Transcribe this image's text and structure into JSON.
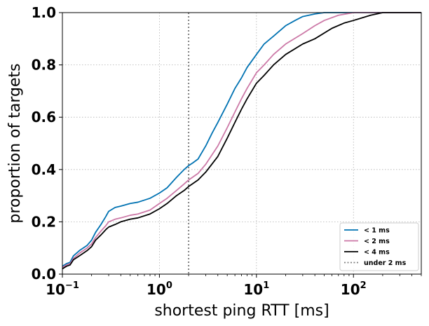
{
  "chart_data": {
    "type": "line",
    "title": "",
    "xlabel": "shortest ping RTT [ms]",
    "ylabel": "proportion of targets",
    "x_scale": "log",
    "xlim": [
      0.1,
      500
    ],
    "ylim": [
      0.0,
      1.0
    ],
    "grid": true,
    "legend_position": "bottom-right",
    "x_ticks": [
      {
        "base": "10",
        "exp": "−1",
        "value": 0.1
      },
      {
        "base": "10",
        "exp": "0",
        "value": 1
      },
      {
        "base": "10",
        "exp": "1",
        "value": 10
      },
      {
        "base": "10",
        "exp": "2",
        "value": 100
      }
    ],
    "y_ticks": [
      {
        "label": "0.0",
        "value": 0.0
      },
      {
        "label": "0.2",
        "value": 0.2
      },
      {
        "label": "0.4",
        "value": 0.4
      },
      {
        "label": "0.6",
        "value": 0.6
      },
      {
        "label": "0.8",
        "value": 0.8
      },
      {
        "label": "1.0",
        "value": 1.0
      }
    ],
    "reference_line": {
      "name": "under 2 ms",
      "x": 2,
      "color": "#808080",
      "style": "dotted"
    },
    "series": [
      {
        "name": "< 1 ms",
        "color": "#0072B2",
        "points": [
          [
            0.1,
            0.03
          ],
          [
            0.11,
            0.04
          ],
          [
            0.12,
            0.045
          ],
          [
            0.13,
            0.07
          ],
          [
            0.15,
            0.09
          ],
          [
            0.18,
            0.11
          ],
          [
            0.2,
            0.13
          ],
          [
            0.22,
            0.16
          ],
          [
            0.25,
            0.19
          ],
          [
            0.28,
            0.22
          ],
          [
            0.3,
            0.24
          ],
          [
            0.35,
            0.255
          ],
          [
            0.4,
            0.26
          ],
          [
            0.5,
            0.27
          ],
          [
            0.6,
            0.275
          ],
          [
            0.8,
            0.29
          ],
          [
            1.0,
            0.31
          ],
          [
            1.2,
            0.33
          ],
          [
            1.5,
            0.37
          ],
          [
            1.8,
            0.4
          ],
          [
            2.0,
            0.415
          ],
          [
            2.2,
            0.425
          ],
          [
            2.5,
            0.44
          ],
          [
            3.0,
            0.49
          ],
          [
            3.5,
            0.54
          ],
          [
            4.0,
            0.58
          ],
          [
            5.0,
            0.65
          ],
          [
            6.0,
            0.71
          ],
          [
            7.0,
            0.75
          ],
          [
            8.0,
            0.79
          ],
          [
            10,
            0.84
          ],
          [
            12,
            0.88
          ],
          [
            15,
            0.91
          ],
          [
            20,
            0.95
          ],
          [
            25,
            0.97
          ],
          [
            30,
            0.985
          ],
          [
            40,
            0.995
          ],
          [
            50,
            1.0
          ],
          [
            500,
            1.0
          ]
        ]
      },
      {
        "name": "< 2 ms",
        "color": "#CC79A7",
        "points": [
          [
            0.1,
            0.025
          ],
          [
            0.11,
            0.035
          ],
          [
            0.12,
            0.04
          ],
          [
            0.13,
            0.06
          ],
          [
            0.15,
            0.08
          ],
          [
            0.18,
            0.1
          ],
          [
            0.2,
            0.115
          ],
          [
            0.22,
            0.14
          ],
          [
            0.25,
            0.165
          ],
          [
            0.28,
            0.185
          ],
          [
            0.3,
            0.2
          ],
          [
            0.35,
            0.21
          ],
          [
            0.4,
            0.215
          ],
          [
            0.5,
            0.225
          ],
          [
            0.6,
            0.23
          ],
          [
            0.8,
            0.245
          ],
          [
            1.0,
            0.27
          ],
          [
            1.2,
            0.29
          ],
          [
            1.5,
            0.32
          ],
          [
            1.8,
            0.345
          ],
          [
            2.0,
            0.36
          ],
          [
            2.5,
            0.385
          ],
          [
            3.0,
            0.42
          ],
          [
            4.0,
            0.49
          ],
          [
            5.0,
            0.56
          ],
          [
            6.0,
            0.62
          ],
          [
            7.0,
            0.67
          ],
          [
            8.0,
            0.71
          ],
          [
            10,
            0.77
          ],
          [
            12,
            0.8
          ],
          [
            15,
            0.84
          ],
          [
            20,
            0.88
          ],
          [
            30,
            0.92
          ],
          [
            40,
            0.95
          ],
          [
            50,
            0.97
          ],
          [
            70,
            0.99
          ],
          [
            100,
            1.0
          ],
          [
            500,
            1.0
          ]
        ]
      },
      {
        "name": "< 4 ms",
        "color": "#000000",
        "points": [
          [
            0.1,
            0.02
          ],
          [
            0.11,
            0.03
          ],
          [
            0.12,
            0.035
          ],
          [
            0.13,
            0.055
          ],
          [
            0.15,
            0.07
          ],
          [
            0.18,
            0.09
          ],
          [
            0.2,
            0.105
          ],
          [
            0.22,
            0.13
          ],
          [
            0.25,
            0.15
          ],
          [
            0.28,
            0.17
          ],
          [
            0.3,
            0.18
          ],
          [
            0.35,
            0.19
          ],
          [
            0.4,
            0.2
          ],
          [
            0.5,
            0.21
          ],
          [
            0.6,
            0.215
          ],
          [
            0.8,
            0.23
          ],
          [
            1.0,
            0.25
          ],
          [
            1.2,
            0.27
          ],
          [
            1.5,
            0.3
          ],
          [
            1.8,
            0.32
          ],
          [
            2.0,
            0.335
          ],
          [
            2.5,
            0.36
          ],
          [
            3.0,
            0.39
          ],
          [
            4.0,
            0.45
          ],
          [
            5.0,
            0.52
          ],
          [
            6.0,
            0.58
          ],
          [
            7.0,
            0.63
          ],
          [
            8.0,
            0.67
          ],
          [
            10,
            0.73
          ],
          [
            12,
            0.76
          ],
          [
            15,
            0.8
          ],
          [
            20,
            0.84
          ],
          [
            30,
            0.88
          ],
          [
            40,
            0.9
          ],
          [
            60,
            0.94
          ],
          [
            80,
            0.96
          ],
          [
            100,
            0.97
          ],
          [
            150,
            0.99
          ],
          [
            200,
            1.0
          ],
          [
            500,
            1.0
          ]
        ]
      }
    ]
  }
}
